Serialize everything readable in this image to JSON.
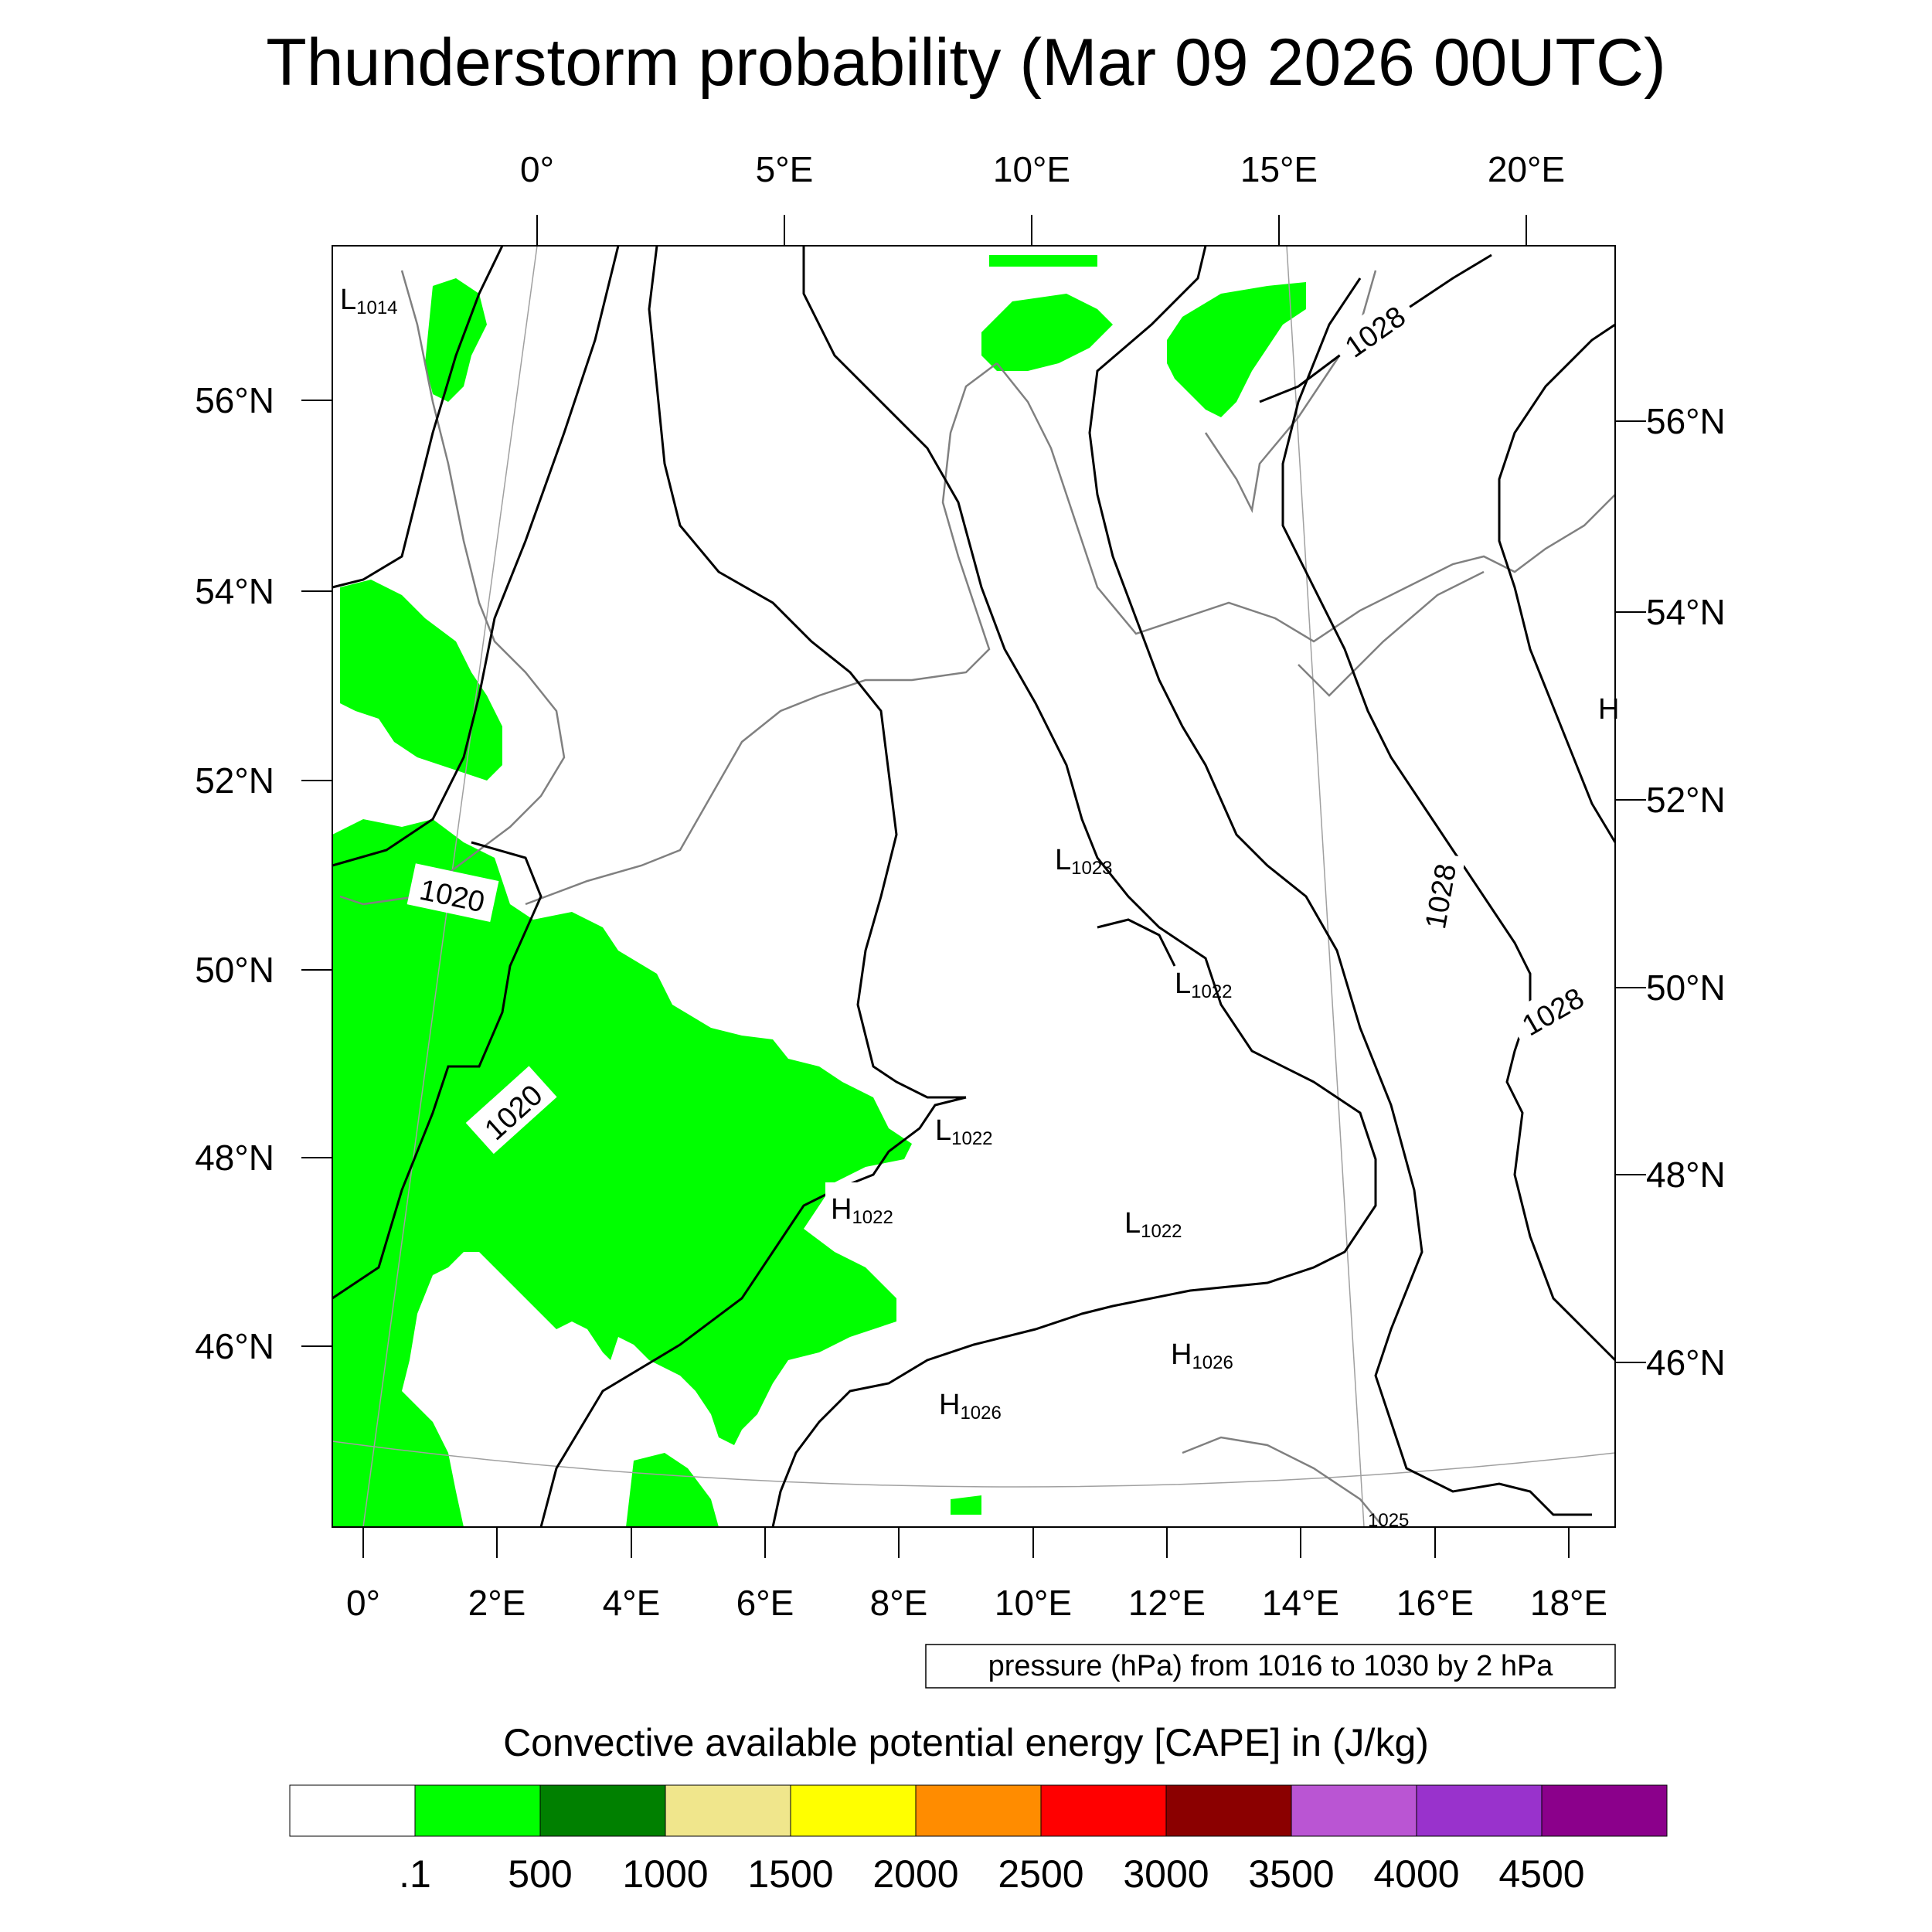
{
  "title": "Thunderstorm probability (Mar 09 2026 00UTC)",
  "axes": {
    "top_lon_labels": [
      "0°",
      "5°E",
      "10°E",
      "15°E",
      "20°E"
    ],
    "bottom_lon_labels": [
      "0°",
      "2°E",
      "4°E",
      "6°E",
      "8°E",
      "10°E",
      "12°E",
      "14°E",
      "16°E",
      "18°E"
    ],
    "left_lat_labels": [
      "56°N",
      "54°N",
      "52°N",
      "50°N",
      "48°N",
      "46°N"
    ],
    "right_lat_labels": [
      "56°N",
      "54°N",
      "52°N",
      "50°N",
      "48°N",
      "46°N"
    ]
  },
  "pressure_centers": [
    {
      "kind": "L",
      "value": "1014"
    },
    {
      "kind": "L",
      "value": "1023"
    },
    {
      "kind": "L",
      "value": "1022"
    },
    {
      "kind": "L",
      "value": "1022"
    },
    {
      "kind": "L",
      "value": "1022"
    },
    {
      "kind": "H",
      "value": "1022"
    },
    {
      "kind": "H",
      "value": "1026"
    },
    {
      "kind": "H",
      "value": "1026"
    },
    {
      "kind": "H",
      "value": ""
    },
    {
      "kind": "",
      "value": "1025"
    }
  ],
  "contour_labels": [
    "1020",
    "1020",
    "1028",
    "1028",
    "1028"
  ],
  "contour_info": "pressure (hPa) from 1016 to 1030 by 2 hPa",
  "colorbar": {
    "title": "Convective available potential energy [CAPE] in (J/kg)",
    "colors": [
      "#ffffff",
      "#00ff00",
      "#008000",
      "#f0e68c",
      "#ffff00",
      "#ff8c00",
      "#ff0000",
      "#8b0000",
      "#ba55d3",
      "#9932cc",
      "#8b008b"
    ],
    "tick_labels": [
      ".1",
      "500",
      "1000",
      "1500",
      "2000",
      "2500",
      "3000",
      "3500",
      "4000",
      "4500"
    ]
  },
  "colors": {
    "cape_low": "#00ff00",
    "isobar": "#000000",
    "coastline": "#808080"
  }
}
